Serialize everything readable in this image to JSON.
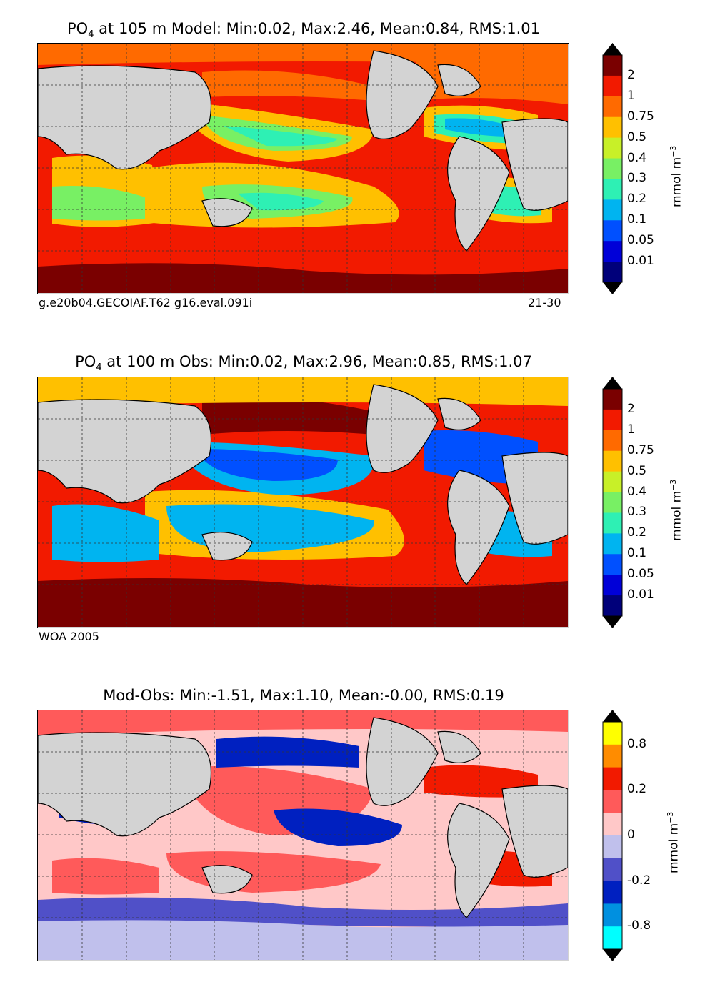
{
  "chart_data": [
    {
      "type": "heatmap",
      "title_main": "PO",
      "title_sub": "4",
      "title_rest": " at 105 m Model: Min:0.02, Max:2.46, Mean:0.84, RMS:1.01",
      "footer_left": "g.e20b04.GECOIAF.T62 g16.eval.091i",
      "footer_right": "21-30",
      "colorbar": {
        "labels": [
          "2",
          "1",
          "0.75",
          "0.5",
          "0.4",
          "0.3",
          "0.2",
          "0.1",
          "0.05",
          "0.01"
        ],
        "unit_main": "mmol m",
        "unit_sup": "−3",
        "colors": [
          "#7a0000",
          "#f21a00",
          "#ff6a00",
          "#ffc000",
          "#c8f028",
          "#78f064",
          "#2ef0b4",
          "#00b4f0",
          "#0050ff",
          "#0000d8",
          "#00007a"
        ]
      }
    },
    {
      "type": "heatmap",
      "title_main": "PO",
      "title_sub": "4",
      "title_rest": " at 100 m Obs: Min:0.02, Max:2.96, Mean:0.85, RMS:1.07",
      "footer_left": "WOA 2005",
      "colorbar": {
        "labels": [
          "2",
          "1",
          "0.75",
          "0.5",
          "0.4",
          "0.3",
          "0.2",
          "0.1",
          "0.05",
          "0.01"
        ],
        "unit_main": "mmol m",
        "unit_sup": "−3",
        "colors": [
          "#7a0000",
          "#f21a00",
          "#ff6a00",
          "#ffc000",
          "#c8f028",
          "#78f064",
          "#2ef0b4",
          "#00b4f0",
          "#0050ff",
          "#0000d8",
          "#00007a"
        ]
      }
    },
    {
      "type": "heatmap",
      "title_main": "Mod-Obs: Min:-1.51, Max:1.10, Mean:-0.00, RMS:0.19",
      "colorbar": {
        "labels": [
          "0.8",
          "0.2",
          "0",
          "-0.2",
          "-0.8"
        ],
        "unit_main": "mmol m",
        "unit_sup": "−3",
        "colors": [
          "#ffff00",
          "#ff8c00",
          "#f21a00",
          "#ff5a5a",
          "#ffc8c8",
          "#c0c0ec",
          "#5050c8",
          "#0020c0",
          "#0090e0",
          "#00ffff"
        ]
      }
    }
  ]
}
